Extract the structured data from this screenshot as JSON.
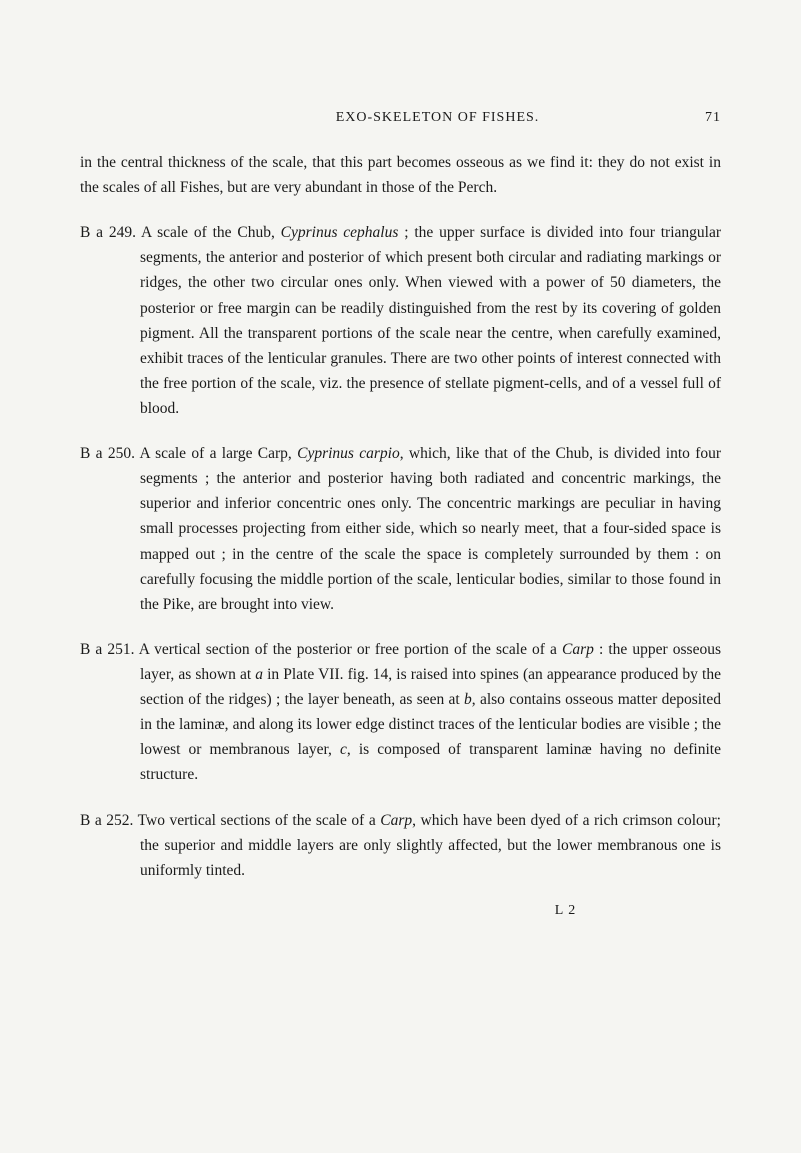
{
  "header": {
    "title": "EXO-SKELETON OF FISHES.",
    "page_number": "71"
  },
  "intro": "in the central thickness of the scale, that this part becomes osseous as we find it: they do not exist in the scales of all Fishes, but are very abundant in those of the Perch.",
  "entries": [
    {
      "label": "B a 249.",
      "text_start": "A scale of the Chub, ",
      "italic1": "Cyprinus cephalus",
      "text_rest": " ; the upper surface is divided into four triangular segments, the anterior and posterior of which present both circular and radiating markings or ridges, the other two circular ones only. When viewed with a power of 50 diameters, the posterior or free margin can be readily distinguished from the rest by its covering of golden pigment. All the transparent portions of the scale near the centre, when carefully examined, exhibit traces of the lenticular granules. There are two other points of interest connected with the free portion of the scale, viz. the presence of stellate pigment-cells, and of a vessel full of blood."
    },
    {
      "label": "B a 250.",
      "text_start": "A scale of a large Carp, ",
      "italic1": "Cyprinus carpio",
      "text_rest": ", which, like that of the Chub, is divided into four segments ; the anterior and posterior having both radiated and concentric markings, the superior and inferior concentric ones only. The concentric markings are peculiar in having small processes projecting from either side, which so nearly meet, that a four-sided space is mapped out ; in the centre of the scale the space is completely surrounded by them : on carefully focusing the middle portion of the scale, lenticular bodies, similar to those found in the Pike, are brought into view."
    },
    {
      "label": "B a 251.",
      "text_start": "A vertical section of the posterior or free portion of the scale of a ",
      "italic1": "Carp",
      "text_mid": " : the upper osseous layer, as shown at ",
      "italic2": "a",
      "text_mid2": " in Plate VII. fig. 14, is raised into spines (an appearance produced by the section of the ridges) ; the layer beneath, as seen at ",
      "italic3": "b",
      "text_mid3": ", also contains osseous matter deposited in the laminæ, and along its lower edge distinct traces of the lenticular bodies are visible ; the lowest or membranous layer, ",
      "italic4": "c",
      "text_rest": ", is composed of transparent laminæ having no definite structure."
    },
    {
      "label": "B a 252.",
      "text_start": "Two vertical sections of the scale of a ",
      "italic1": "Carp",
      "text_rest": ", which have been dyed of a rich crimson colour; the superior and middle layers are only slightly affected, but the lower membranous one is uniformly tinted."
    }
  ],
  "footer_sig": "L 2"
}
